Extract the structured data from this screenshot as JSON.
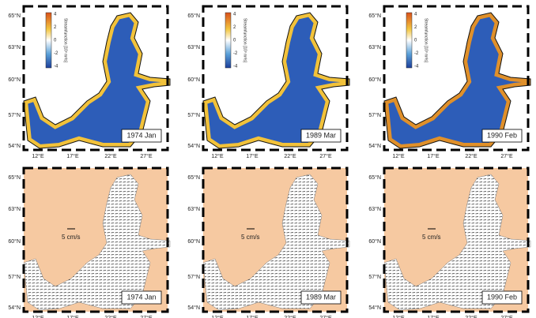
{
  "panels": [
    {
      "label": "1974 Jan"
    },
    {
      "label": "1989 Mar"
    },
    {
      "label": "1990 Feb"
    }
  ],
  "lat_labels": [
    "65°N",
    "63°N",
    "60°N",
    "57°N",
    "54°N"
  ],
  "lon_labels": [
    "12°E",
    "17°E",
    "22°E",
    "27°E"
  ],
  "colorbar": {
    "title": "Streamfunction [10³ m³/s]",
    "ticks": [
      "4",
      "2",
      "0",
      "-2",
      "-4"
    ]
  },
  "scale_label": "5 cm/s"
}
